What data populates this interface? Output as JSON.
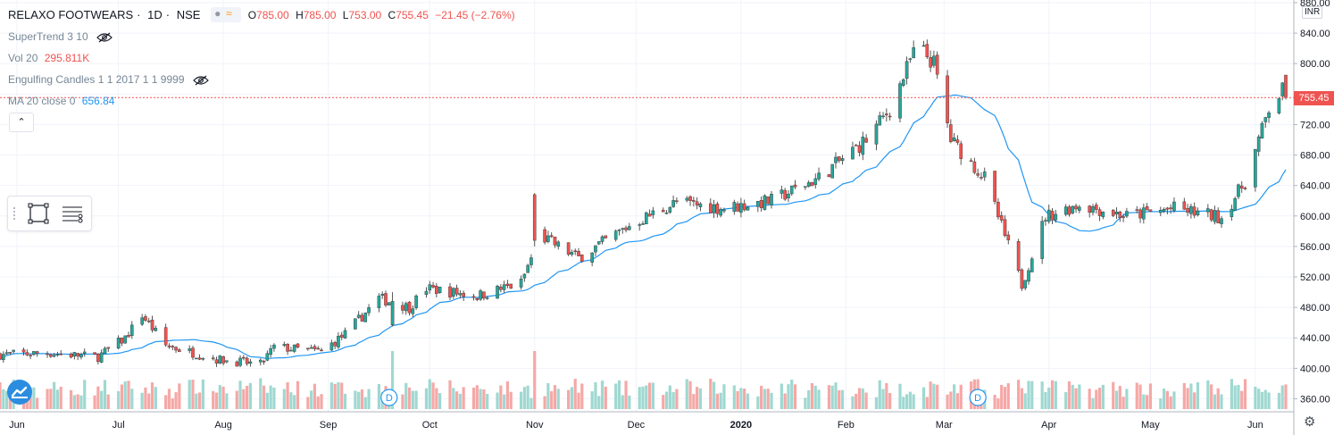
{
  "header": {
    "symbol": "RELAXO FOOTWEARS",
    "interval": "1D",
    "exchange": "NSE",
    "sep": "·",
    "open_label": "O",
    "open": "785.00",
    "high_label": "H",
    "high": "785.00",
    "low_label": "L",
    "low": "753.00",
    "close_label": "C",
    "close": "755.45",
    "change": "−21.45 (−2.76%)",
    "compare_glyph": "≈"
  },
  "indicators": {
    "supertrend": {
      "label": "SuperTrend 3 10"
    },
    "volume": {
      "label": "Vol 20",
      "value": "295.811K",
      "color": "#ef5350"
    },
    "engulfing": {
      "label": "Engulfing Candles 1 1 2017 1 1 9999"
    },
    "ma": {
      "label": "MA 20 close 0",
      "value": "656.84",
      "color": "#2196f3"
    }
  },
  "ui": {
    "collapse_glyph": "⌃",
    "currency": "INR",
    "last_price_tag": "755.45",
    "settings_glyph": "⚙",
    "dividend_marker": "D"
  },
  "colors": {
    "up": "#26a69a",
    "down": "#ef5350",
    "up_volume": "#9fd8d1",
    "down_volume": "#f5a8a6",
    "ma_line": "#2196f3",
    "grid": "#f0f3fa",
    "axis_text": "#131722"
  },
  "chart_data": {
    "type": "candlestick",
    "x_range": [
      "2019-05-27",
      "2020-06-10"
    ],
    "ylim": [
      350,
      880
    ],
    "y_ticks": [
      360,
      400,
      440,
      480,
      520,
      560,
      600,
      640,
      680,
      720,
      760,
      800,
      840,
      880
    ],
    "x_ticks": [
      {
        "label": "Jun",
        "date": "2019-06-01"
      },
      {
        "label": "Jul",
        "date": "2019-07-01"
      },
      {
        "label": "Aug",
        "date": "2019-08-01"
      },
      {
        "label": "Sep",
        "date": "2019-09-01"
      },
      {
        "label": "Oct",
        "date": "2019-10-01"
      },
      {
        "label": "Nov",
        "date": "2019-11-01"
      },
      {
        "label": "Dec",
        "date": "2019-12-01"
      },
      {
        "label": "2020",
        "date": "2020-01-01"
      },
      {
        "label": "Feb",
        "date": "2020-02-01"
      },
      {
        "label": "Mar",
        "date": "2020-03-01"
      },
      {
        "label": "Apr",
        "date": "2020-04-01"
      },
      {
        "label": "May",
        "date": "2020-05-01"
      },
      {
        "label": "Jun",
        "date": "2020-06-01"
      }
    ],
    "price_anchors": [
      [
        "2019-05-27",
        418
      ],
      [
        "2019-06-10",
        420
      ],
      [
        "2019-06-25",
        415
      ],
      [
        "2019-07-03",
        440
      ],
      [
        "2019-07-08",
        470
      ],
      [
        "2019-07-15",
        430
      ],
      [
        "2019-07-30",
        412
      ],
      [
        "2019-08-12",
        405
      ],
      [
        "2019-08-16",
        428
      ],
      [
        "2019-08-30",
        422
      ],
      [
        "2019-09-06",
        445
      ],
      [
        "2019-09-16",
        492
      ],
      [
        "2019-09-25",
        480
      ],
      [
        "2019-09-30",
        505
      ],
      [
        "2019-10-15",
        495
      ],
      [
        "2019-10-28",
        512
      ],
      [
        "2019-10-31",
        545
      ],
      [
        "2019-11-01",
        578
      ],
      [
        "2019-11-14",
        545
      ],
      [
        "2019-11-30",
        590
      ],
      [
        "2019-12-13",
        618
      ],
      [
        "2019-12-27",
        610
      ],
      [
        "2020-01-10",
        620
      ],
      [
        "2020-01-24",
        650
      ],
      [
        "2020-02-07",
        700
      ],
      [
        "2020-02-14",
        740
      ],
      [
        "2020-02-22",
        825
      ],
      [
        "2020-02-27",
        800
      ],
      [
        "2020-03-03",
        700
      ],
      [
        "2020-03-13",
        650
      ],
      [
        "2020-03-24",
        510
      ],
      [
        "2020-03-31",
        600
      ],
      [
        "2020-04-10",
        615
      ],
      [
        "2020-04-24",
        600
      ],
      [
        "2020-05-08",
        610
      ],
      [
        "2020-05-22",
        598
      ],
      [
        "2020-05-29",
        645
      ],
      [
        "2020-06-05",
        740
      ],
      [
        "2020-06-10",
        770
      ]
    ],
    "close": "755.45",
    "ma_period": 20,
    "ma_last": "656.84",
    "volume_max": "295.811K",
    "spike_candles": [
      {
        "date": "2019-11-01",
        "high": 630,
        "low": 560,
        "color": "down"
      },
      {
        "date": "2019-09-20",
        "high": 500,
        "low": 455,
        "color": "up"
      }
    ],
    "dividend_dates": [
      "2019-09-19",
      "2020-03-11"
    ]
  }
}
